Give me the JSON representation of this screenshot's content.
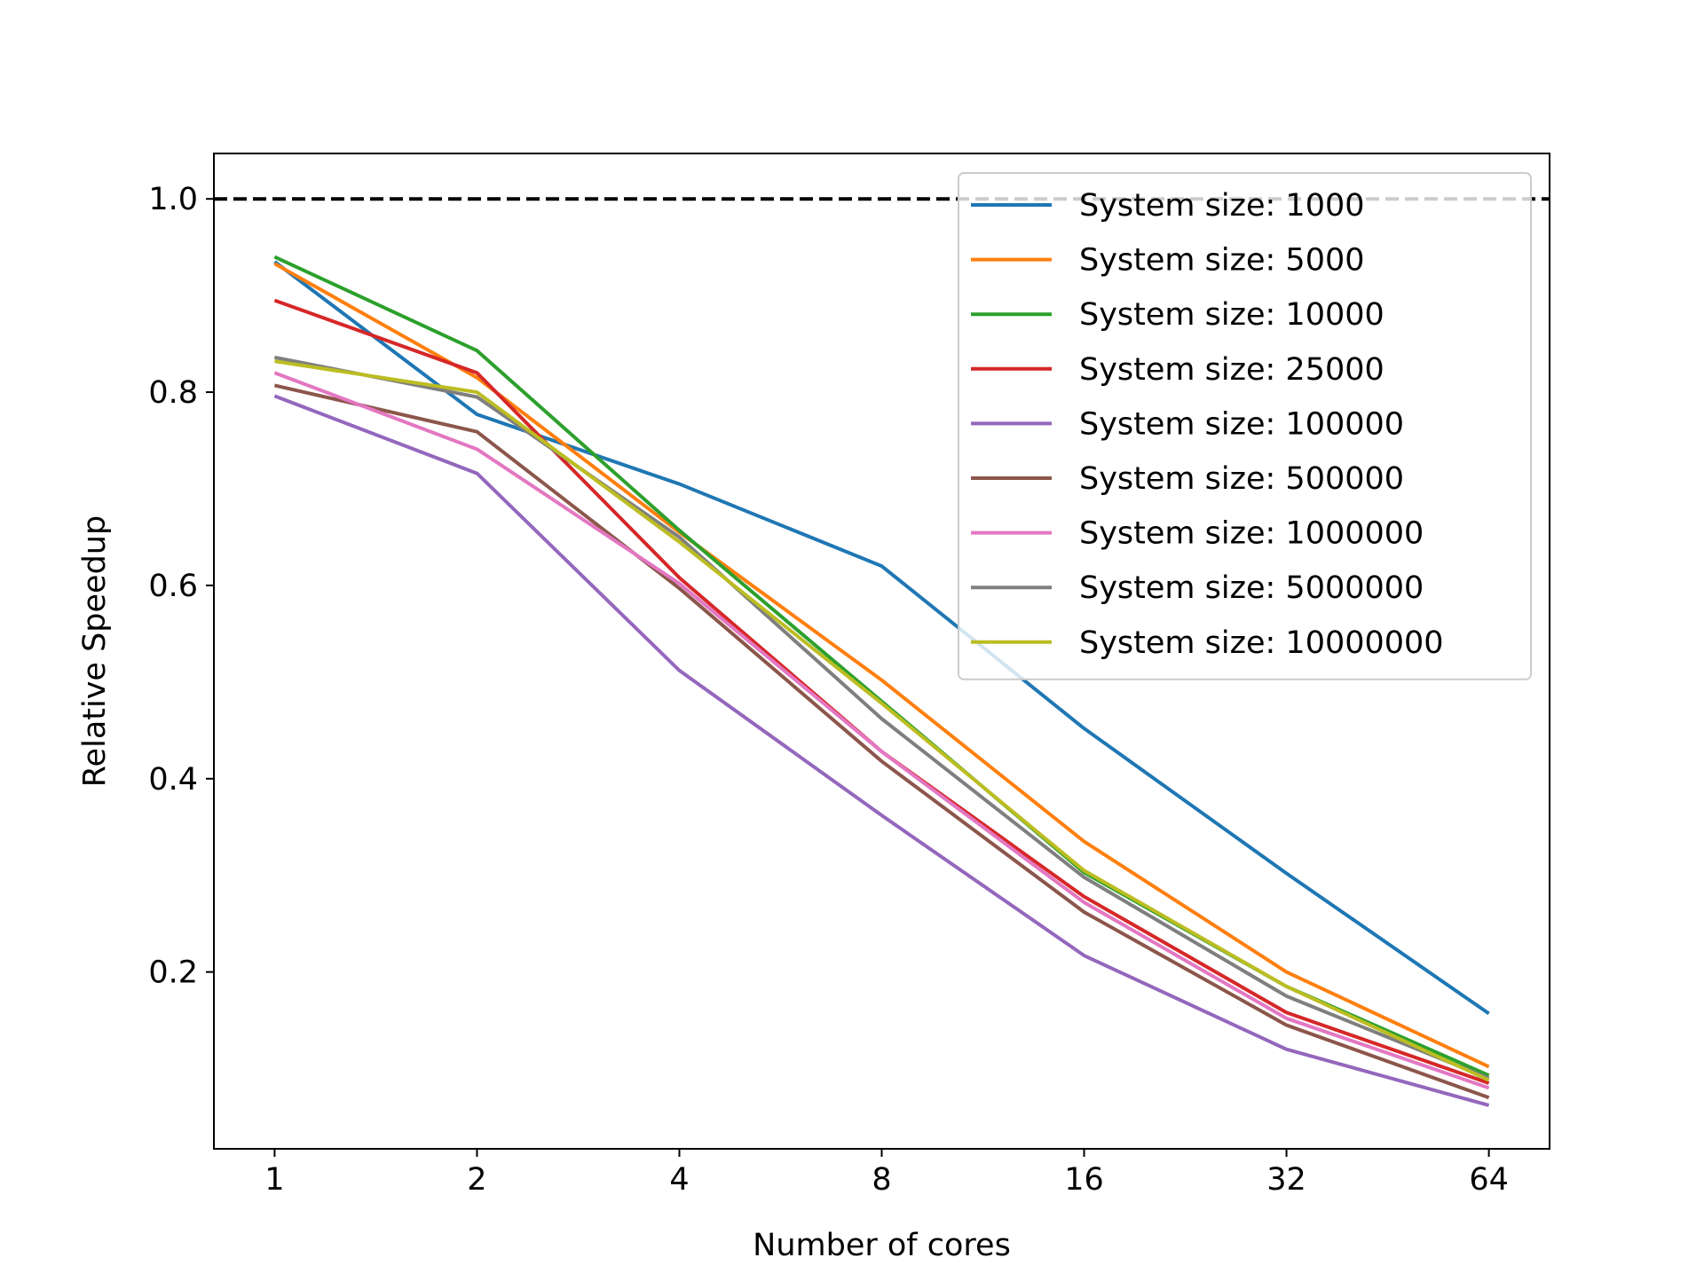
{
  "chart_data": {
    "type": "line",
    "title": "",
    "xlabel": "Number of cores",
    "ylabel": "Relative Speedup",
    "x_scale": "log2",
    "x": [
      1,
      2,
      4,
      8,
      16,
      32,
      64
    ],
    "x_tick_labels": [
      "1",
      "2",
      "4",
      "8",
      "16",
      "32",
      "64"
    ],
    "y_ticks": [
      0.2,
      0.4,
      0.6,
      0.8,
      1.0
    ],
    "y_tick_labels": [
      "0.2",
      "0.4",
      "0.6",
      "0.8",
      "1.0"
    ],
    "ylim": [
      0.017,
      1.047
    ],
    "grid": false,
    "legend_position": "top-right",
    "reference_line": {
      "y": 1.0,
      "style": "dashed",
      "color": "#000000"
    },
    "series": [
      {
        "name": "System size: 1000",
        "color": "#1f77b4",
        "values": [
          0.935,
          0.777,
          0.705,
          0.62,
          0.452,
          0.302,
          0.157
        ]
      },
      {
        "name": "System size: 5000",
        "color": "#ff7f0e",
        "values": [
          0.933,
          0.815,
          0.655,
          0.502,
          0.335,
          0.2,
          0.102
        ]
      },
      {
        "name": "System size: 10000",
        "color": "#2ca02c",
        "values": [
          0.94,
          0.843,
          0.657,
          0.48,
          0.303,
          0.185,
          0.093
        ]
      },
      {
        "name": "System size: 25000",
        "color": "#d62728",
        "values": [
          0.895,
          0.82,
          0.608,
          0.428,
          0.278,
          0.158,
          0.085
        ]
      },
      {
        "name": "System size: 100000",
        "color": "#9467bd",
        "values": [
          0.796,
          0.716,
          0.512,
          0.362,
          0.217,
          0.12,
          0.062
        ]
      },
      {
        "name": "System size: 500000",
        "color": "#8c564b",
        "values": [
          0.807,
          0.759,
          0.597,
          0.418,
          0.262,
          0.145,
          0.07
        ]
      },
      {
        "name": "System size: 1000000",
        "color": "#e377c2",
        "values": [
          0.82,
          0.741,
          0.602,
          0.428,
          0.272,
          0.152,
          0.08
        ]
      },
      {
        "name": "System size: 5000000",
        "color": "#7f7f7f",
        "values": [
          0.836,
          0.795,
          0.65,
          0.462,
          0.298,
          0.175,
          0.09
        ]
      },
      {
        "name": "System size: 10000000",
        "color": "#bcbd22",
        "values": [
          0.832,
          0.8,
          0.645,
          0.478,
          0.305,
          0.185,
          0.088
        ]
      }
    ]
  }
}
